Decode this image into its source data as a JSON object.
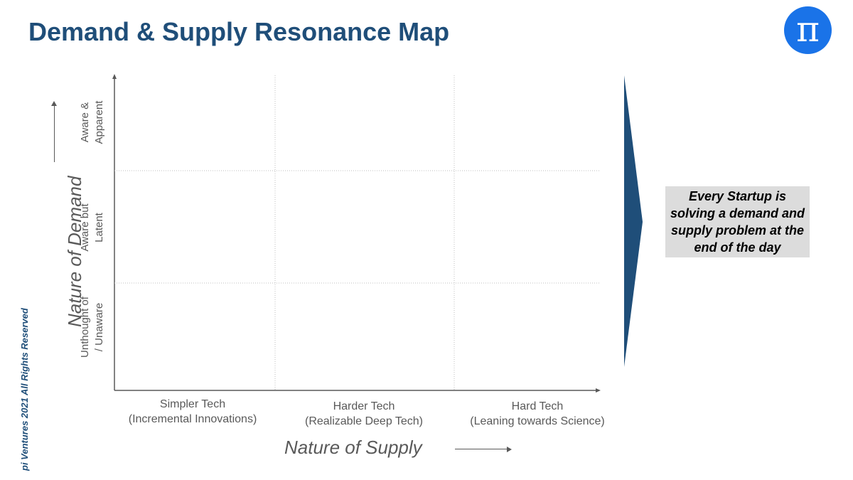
{
  "slide": {
    "title": "Demand & Supply Resonance Map",
    "logo_glyph": "π",
    "footer": "pi Ventures 2021  All Rights Reserved"
  },
  "chart_data": {
    "type": "matrix",
    "y_axis": {
      "label": "Nature of Demand",
      "rows": [
        [
          "Aware &",
          "Apparent"
        ],
        [
          "Aware but",
          "Latent"
        ],
        [
          "Unthought of",
          "/ Unaware"
        ]
      ]
    },
    "x_axis": {
      "label": "Nature of Supply",
      "columns": [
        [
          "Simpler Tech",
          "(Incremental Innovations)"
        ],
        [
          "Harder Tech",
          "(Realizable Deep Tech)"
        ],
        [
          "Hard Tech",
          "(Leaning towards Science)"
        ]
      ]
    }
  },
  "callout": {
    "text": "Every Startup is solving a demand and supply problem at the end of the day"
  },
  "colors": {
    "title": "#1f4e79",
    "logo": "#1a73e8",
    "chevron": "#1f4e79",
    "callout_bg": "#dcdcdc"
  }
}
